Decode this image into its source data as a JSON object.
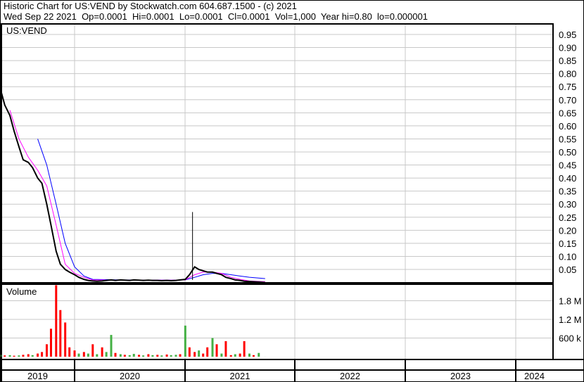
{
  "header": {
    "title": "Historic Chart for US:VEND by Stockwatch.com 604.687.1500 - (c) 2021",
    "quote": "Wed Sep 22 2021  Op=0.0001  Hi=0.0001  Lo=0.0001  Cl=0.0001  Vol=1,000  Year hi=0.80  lo=0.000001"
  },
  "colors": {
    "price": "#000000",
    "ma_short": "#ff00ff",
    "ma_long": "#0000ff",
    "vol_up": "#44b044",
    "vol_down": "#ff0000",
    "grid": "#c8c8c8"
  },
  "chart_data": [
    {
      "type": "line",
      "title": "US:VEND",
      "ylim": [
        0,
        0.97
      ],
      "yticks": [
        "0.05",
        "0.10",
        "0.15",
        "0.20",
        "0.25",
        "0.30",
        "0.35",
        "0.40",
        "0.45",
        "0.50",
        "0.55",
        "0.60",
        "0.65",
        "0.70",
        "0.75",
        "0.80",
        "0.85",
        "0.90",
        "0.95"
      ],
      "xticks": [
        "2019",
        "2020",
        "2021",
        "2022",
        "2023",
        "2024"
      ],
      "grid": true,
      "series": [
        {
          "key": "close",
          "x": [
            "2019-05-01",
            "2019-05-15",
            "2019-06-01",
            "2019-06-15",
            "2019-07-01",
            "2019-07-15",
            "2019-08-01",
            "2019-08-15",
            "2019-09-01",
            "2019-09-15",
            "2019-10-01",
            "2019-10-15",
            "2019-11-01",
            "2019-11-15",
            "2019-12-01",
            "2019-12-15",
            "2020-01-01",
            "2020-01-15",
            "2020-02-01",
            "2020-02-15",
            "2020-03-01",
            "2020-03-15",
            "2020-04-01",
            "2020-04-15",
            "2020-05-01",
            "2020-05-15",
            "2020-06-01",
            "2020-06-15",
            "2020-07-01",
            "2020-07-15",
            "2020-08-01",
            "2020-08-15",
            "2020-09-01",
            "2020-09-15",
            "2020-10-01",
            "2020-10-15",
            "2020-11-01",
            "2020-11-15",
            "2020-12-01",
            "2020-12-15",
            "2021-01-01",
            "2021-01-15",
            "2021-02-01",
            "2021-02-15",
            "2021-03-01",
            "2021-03-15",
            "2021-04-01",
            "2021-04-15",
            "2021-05-01",
            "2021-05-15",
            "2021-06-01",
            "2021-06-15",
            "2021-07-01",
            "2021-07-15",
            "2021-08-01",
            "2021-08-15",
            "2021-09-01",
            "2021-09-22"
          ],
          "y": [
            0.74,
            0.68,
            0.64,
            0.58,
            0.52,
            0.47,
            0.46,
            0.44,
            0.4,
            0.38,
            0.3,
            0.22,
            0.12,
            0.07,
            0.05,
            0.04,
            0.03,
            0.02,
            0.012,
            0.008,
            0.006,
            0.005,
            0.006,
            0.008,
            0.01,
            0.008,
            0.01,
            0.009,
            0.008,
            0.01,
            0.009,
            0.008,
            0.009,
            0.008,
            0.008,
            0.007,
            0.008,
            0.007,
            0.008,
            0.01,
            0.012,
            0.03,
            0.06,
            0.05,
            0.045,
            0.04,
            0.04,
            0.035,
            0.03,
            0.02,
            0.015,
            0.01,
            0.008,
            0.005,
            0.004,
            0.003,
            0.002,
            0.0001
          ]
        },
        {
          "key": "ma_short",
          "x": [
            "2019-06-01",
            "2019-07-01",
            "2019-08-01",
            "2019-09-01",
            "2019-10-01",
            "2019-11-01",
            "2019-12-01",
            "2020-01-01",
            "2020-02-01",
            "2020-03-01",
            "2020-06-01",
            "2020-12-01",
            "2021-01-01",
            "2021-02-01",
            "2021-03-01",
            "2021-04-01",
            "2021-05-01",
            "2021-06-01",
            "2021-07-01",
            "2021-08-01",
            "2021-09-22"
          ],
          "y": [
            0.66,
            0.55,
            0.48,
            0.43,
            0.37,
            0.22,
            0.07,
            0.035,
            0.02,
            0.01,
            0.009,
            0.009,
            0.01,
            0.03,
            0.04,
            0.04,
            0.035,
            0.02,
            0.012,
            0.006,
            0.003
          ]
        },
        {
          "key": "ma_long",
          "x": [
            "2019-09-01",
            "2019-10-01",
            "2019-11-01",
            "2019-12-01",
            "2020-01-01",
            "2020-02-01",
            "2020-03-01",
            "2020-06-01",
            "2020-12-01",
            "2021-01-01",
            "2021-02-01",
            "2021-03-01",
            "2021-04-01",
            "2021-05-01",
            "2021-06-01",
            "2021-07-01",
            "2021-08-01",
            "2021-09-22"
          ],
          "y": [
            0.55,
            0.45,
            0.3,
            0.15,
            0.06,
            0.025,
            0.012,
            0.01,
            0.009,
            0.01,
            0.02,
            0.03,
            0.035,
            0.035,
            0.03,
            0.025,
            0.02,
            0.015
          ]
        }
      ],
      "spike": {
        "x": "2021-01-25",
        "high": 0.27
      }
    },
    {
      "type": "bar",
      "title": "Volume",
      "ylim": [
        0,
        2400000
      ],
      "yticks": [
        "600 k",
        "1.2 M",
        "1.8 M"
      ],
      "x": [
        "2019-05-01",
        "2019-05-15",
        "2019-06-01",
        "2019-06-15",
        "2019-07-01",
        "2019-07-15",
        "2019-08-01",
        "2019-08-15",
        "2019-09-01",
        "2019-09-15",
        "2019-10-01",
        "2019-10-15",
        "2019-11-01",
        "2019-11-15",
        "2019-12-01",
        "2019-12-15",
        "2020-01-01",
        "2020-01-15",
        "2020-02-01",
        "2020-02-15",
        "2020-03-01",
        "2020-03-15",
        "2020-04-01",
        "2020-04-15",
        "2020-05-01",
        "2020-05-15",
        "2020-06-01",
        "2020-06-15",
        "2020-07-01",
        "2020-07-15",
        "2020-08-01",
        "2020-08-15",
        "2020-09-01",
        "2020-09-15",
        "2020-10-01",
        "2020-10-15",
        "2020-11-01",
        "2020-11-15",
        "2020-12-01",
        "2020-12-15",
        "2021-01-01",
        "2021-01-15",
        "2021-02-01",
        "2021-02-15",
        "2021-03-01",
        "2021-03-15",
        "2021-04-01",
        "2021-04-15",
        "2021-05-01",
        "2021-05-15",
        "2021-06-01",
        "2021-06-15",
        "2021-07-01",
        "2021-07-15",
        "2021-08-01",
        "2021-08-15",
        "2021-09-01",
        "2021-09-22"
      ],
      "values": [
        60000,
        40000,
        50000,
        30000,
        40000,
        60000,
        80000,
        50000,
        100000,
        150000,
        400000,
        900000,
        2300000,
        1500000,
        1100000,
        300000,
        200000,
        100000,
        150000,
        100000,
        400000,
        80000,
        300000,
        150000,
        700000,
        120000,
        80000,
        60000,
        50000,
        90000,
        60000,
        40000,
        80000,
        50000,
        60000,
        40000,
        70000,
        50000,
        60000,
        80000,
        1000000,
        300000,
        150000,
        200000,
        100000,
        300000,
        600000,
        400000,
        100000,
        500000,
        50000,
        80000,
        100000,
        500000,
        100000,
        50000,
        120000,
        1000
      ],
      "direction": [
        "up",
        "down",
        "up",
        "down",
        "up",
        "down",
        "down",
        "up",
        "down",
        "down",
        "down",
        "down",
        "down",
        "down",
        "down",
        "down",
        "down",
        "up",
        "down",
        "up",
        "down",
        "up",
        "down",
        "up",
        "up",
        "down",
        "up",
        "down",
        "up",
        "up",
        "down",
        "up",
        "down",
        "up",
        "down",
        "up",
        "down",
        "up",
        "up",
        "down",
        "up",
        "down",
        "down",
        "up",
        "down",
        "down",
        "up",
        "down",
        "up",
        "down",
        "down",
        "up",
        "down",
        "down",
        "up",
        "down",
        "up",
        "up"
      ]
    }
  ]
}
